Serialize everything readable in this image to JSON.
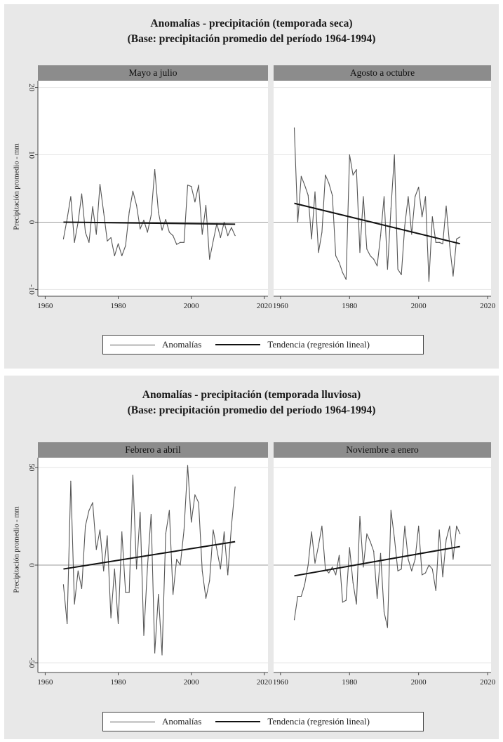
{
  "legend": {
    "anomalies": "Anomalías",
    "trend": "Tendencia (regresión lineal)"
  },
  "chart_data": [
    {
      "type": "line",
      "title": "Anomalías - precipitación (temporada seca)",
      "subtitle": "(Base: precipitación promedio del período 1964-1994)",
      "ylabel": "Precipitación promedio - mm",
      "panels": [
        {
          "panel_title": "Mayo a julio",
          "xlim": [
            1958,
            2021
          ],
          "ylim": [
            -11,
            21
          ],
          "xticks": [
            1960,
            1980,
            2000,
            2020
          ],
          "yticks": [
            -10,
            0,
            10,
            20
          ],
          "series": [
            {
              "name": "Anomalías",
              "x": [
                1965,
                1966,
                1967,
                1968,
                1969,
                1970,
                1971,
                1972,
                1973,
                1974,
                1975,
                1976,
                1977,
                1978,
                1979,
                1980,
                1981,
                1982,
                1983,
                1984,
                1985,
                1986,
                1987,
                1988,
                1989,
                1990,
                1991,
                1992,
                1993,
                1994,
                1995,
                1996,
                1997,
                1998,
                1999,
                2000,
                2001,
                2002,
                2003,
                2004,
                2005,
                2006,
                2007,
                2008,
                2009,
                2010,
                2011,
                2012
              ],
              "y": [
                -2.5,
                0.5,
                3.8,
                -3,
                0,
                4.2,
                -1.5,
                -3,
                2.3,
                -1.8,
                5.6,
                1.5,
                -2.8,
                -2.3,
                -5,
                -3.2,
                -5,
                -3.5,
                1.5,
                4.6,
                2.5,
                -1,
                0.3,
                -1.5,
                1,
                7.8,
                1.5,
                -1.2,
                0.4,
                -1.5,
                -2,
                -3.3,
                -3,
                -3,
                5.5,
                5.3,
                3,
                5.5,
                -1.8,
                2.5,
                -5.5,
                -2.8,
                -0.2,
                -2.3,
                0,
                -2,
                -0.8,
                -2
              ]
            },
            {
              "name": "Tendencia (regresión lineal)",
              "x": [
                1965,
                2012
              ],
              "y": [
                0.0,
                -0.3
              ]
            }
          ]
        },
        {
          "panel_title": "Agosto a octubre",
          "xlim": [
            1958,
            2021
          ],
          "ylim": [
            -11,
            21
          ],
          "xticks": [
            1960,
            1980,
            2000,
            2020
          ],
          "yticks": [
            -10,
            0,
            10,
            20
          ],
          "series": [
            {
              "name": "Anomalías",
              "x": [
                1964,
                1965,
                1966,
                1967,
                1968,
                1969,
                1970,
                1971,
                1972,
                1973,
                1974,
                1975,
                1976,
                1977,
                1978,
                1979,
                1980,
                1981,
                1982,
                1983,
                1984,
                1985,
                1986,
                1987,
                1988,
                1989,
                1990,
                1991,
                1992,
                1993,
                1994,
                1995,
                1996,
                1997,
                1998,
                1999,
                2000,
                2001,
                2002,
                2003,
                2004,
                2005,
                2006,
                2007,
                2008,
                2009,
                2010,
                2011,
                2012
              ],
              "y": [
                14,
                0,
                6.8,
                5.5,
                4,
                -2.5,
                4.5,
                -4.5,
                -1.5,
                7,
                5.8,
                4,
                -5,
                -6,
                -7.5,
                -8.5,
                10,
                7,
                7.8,
                -4.5,
                3.8,
                -4,
                -5,
                -5.5,
                -6.5,
                -2,
                3.8,
                -7,
                2,
                10,
                -7,
                -7.8,
                -0.5,
                3.8,
                -1.8,
                3.8,
                5.2,
                0.8,
                3.8,
                -8.8,
                0.8,
                -3,
                -3,
                -3.2,
                2.4,
                -3.5,
                -8,
                -2.5,
                -2.2
              ]
            },
            {
              "name": "Tendencia (regresión lineal)",
              "x": [
                1964,
                2012
              ],
              "y": [
                2.8,
                -3.2
              ]
            }
          ]
        }
      ]
    },
    {
      "type": "line",
      "title": "Anomalías - precipitación (temporada lluviosa)",
      "subtitle": "(Base: precipitación promedio del período 1964-1994)",
      "ylabel": "Precipitación promedio - mm",
      "panels": [
        {
          "panel_title": "Febrero a abril",
          "xlim": [
            1958,
            2021
          ],
          "ylim": [
            -55,
            55
          ],
          "xticks": [
            1960,
            1980,
            2000,
            2020
          ],
          "yticks": [
            -50,
            0,
            50
          ],
          "series": [
            {
              "name": "Anomalías",
              "x": [
                1965,
                1966,
                1967,
                1968,
                1969,
                1970,
                1971,
                1972,
                1973,
                1974,
                1975,
                1976,
                1977,
                1978,
                1979,
                1980,
                1981,
                1982,
                1983,
                1984,
                1985,
                1986,
                1987,
                1988,
                1989,
                1990,
                1991,
                1992,
                1993,
                1994,
                1995,
                1996,
                1997,
                1998,
                1999,
                2000,
                2001,
                2002,
                2003,
                2004,
                2005,
                2006,
                2007,
                2008,
                2009,
                2010,
                2011,
                2012
              ],
              "y": [
                -10,
                -30,
                43,
                -20,
                -3,
                -12,
                20,
                28,
                32,
                8,
                18,
                -3,
                15,
                -27,
                -2,
                -30,
                17,
                -14,
                -14,
                46,
                -2,
                27,
                -36,
                -1,
                26,
                -45,
                -15,
                -46,
                16,
                28,
                -15,
                3,
                0,
                18,
                51,
                22,
                36,
                32,
                -3,
                -17,
                -8,
                18,
                8,
                -2,
                17,
                -5,
                20,
                40
              ]
            },
            {
              "name": "Tendencia (regresión lineal)",
              "x": [
                1965,
                2012
              ],
              "y": [
                -2.0,
                12.0
              ]
            }
          ]
        },
        {
          "panel_title": "Noviembre a enero",
          "xlim": [
            1958,
            2021
          ],
          "ylim": [
            -55,
            55
          ],
          "xticks": [
            1960,
            1980,
            2000,
            2020
          ],
          "yticks": [
            -50,
            0,
            50
          ],
          "series": [
            {
              "name": "Anomalías",
              "x": [
                1964,
                1965,
                1966,
                1967,
                1968,
                1969,
                1970,
                1971,
                1972,
                1973,
                1974,
                1975,
                1976,
                1977,
                1978,
                1979,
                1980,
                1981,
                1982,
                1983,
                1984,
                1985,
                1986,
                1987,
                1988,
                1989,
                1990,
                1991,
                1992,
                1993,
                1994,
                1995,
                1996,
                1997,
                1998,
                1999,
                2000,
                2001,
                2002,
                2003,
                2004,
                2005,
                2006,
                2007,
                2008,
                2009,
                2010,
                2011,
                2012
              ],
              "y": [
                -28,
                -16,
                -16,
                -10,
                0,
                17,
                1,
                10,
                20,
                -2,
                -4,
                -1,
                -5,
                5,
                -19,
                -18,
                9,
                -9,
                -20,
                25,
                -1,
                16,
                12,
                7,
                -17,
                6,
                -24,
                -32,
                28,
                14,
                -3,
                -2,
                20,
                3,
                -3,
                3,
                20,
                -5,
                -4,
                0,
                -2,
                -13,
                18,
                -6,
                13,
                20,
                3,
                20,
                16
              ]
            },
            {
              "name": "Tendencia (regresión lineal)",
              "x": [
                1964,
                2012
              ],
              "y": [
                -5.5,
                9.5
              ]
            }
          ]
        }
      ]
    }
  ]
}
